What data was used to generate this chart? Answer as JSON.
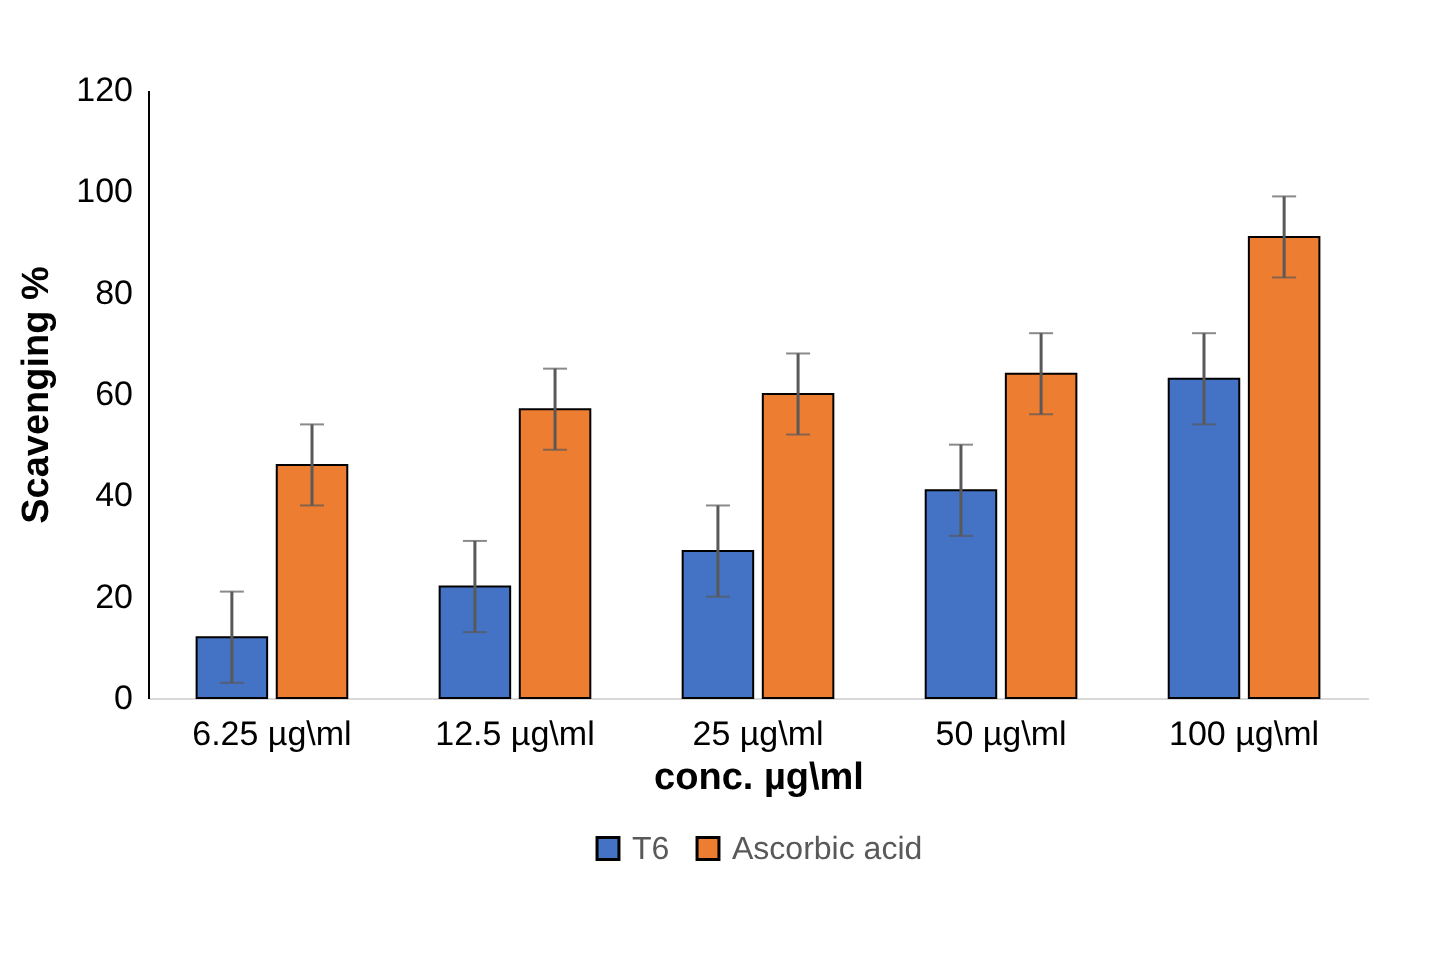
{
  "chart_data": {
    "type": "bar",
    "xlabel": "conc. µg\\ml",
    "ylabel": "Scavenging %",
    "categories": [
      "6.25 µg\\ml",
      "12.5 µg\\ml",
      "25 µg\\ml",
      "50 µg\\ml",
      "100 µg\\ml"
    ],
    "series": [
      {
        "name": "T6",
        "color": "#4472c4",
        "values": [
          12,
          22,
          29,
          41,
          63
        ],
        "errors": [
          9,
          9,
          9,
          9,
          9
        ]
      },
      {
        "name": "Ascorbic acid",
        "color": "#ed7d31",
        "values": [
          46,
          57,
          60,
          64,
          91
        ],
        "errors": [
          8,
          8,
          8,
          8,
          8
        ]
      }
    ],
    "ylim": [
      0,
      120
    ],
    "yticks": [
      0,
      20,
      40,
      60,
      80,
      100,
      120
    ],
    "grid": false,
    "legend": "bottom"
  }
}
